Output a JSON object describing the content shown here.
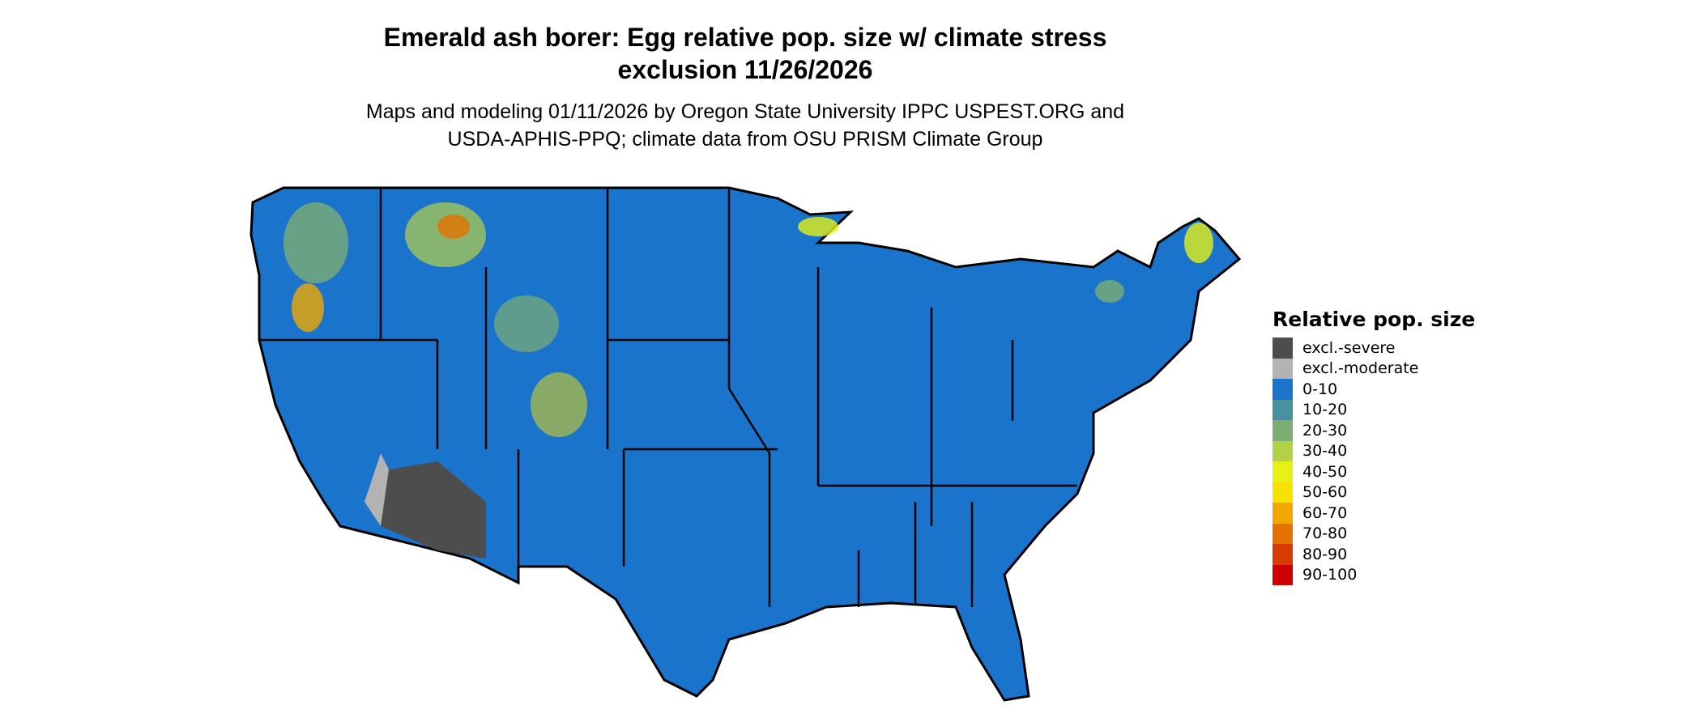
{
  "title": {
    "line1": "Emerald ash borer: Egg relative pop. size w/ climate stress",
    "line2": "exclusion 11/26/2026"
  },
  "subtitle": {
    "line1": "Maps and modeling 01/11/2026 by Oregon State University IPPC USPEST.ORG and",
    "line2": "USDA-APHIS-PPQ; climate data from OSU PRISM Climate Group"
  },
  "map": {
    "region": "Contiguous United States",
    "base_color": "#1b74cc",
    "border_color": "#000000"
  },
  "legend": {
    "title": "Relative pop. size",
    "items": [
      {
        "label": "excl.-severe",
        "color": "#4d4d4d"
      },
      {
        "label": "excl.-moderate",
        "color": "#b3b3b3"
      },
      {
        "label": "0-10",
        "color": "#1b74cc"
      },
      {
        "label": "10-20",
        "color": "#4a919e"
      },
      {
        "label": "20-30",
        "color": "#7cae74"
      },
      {
        "label": "30-40",
        "color": "#b3d147"
      },
      {
        "label": "40-50",
        "color": "#e5f016"
      },
      {
        "label": "50-60",
        "color": "#f8e001"
      },
      {
        "label": "60-70",
        "color": "#f0a800"
      },
      {
        "label": "70-80",
        "color": "#e57200"
      },
      {
        "label": "80-90",
        "color": "#d83a00"
      },
      {
        "label": "90-100",
        "color": "#cc0000"
      }
    ]
  }
}
